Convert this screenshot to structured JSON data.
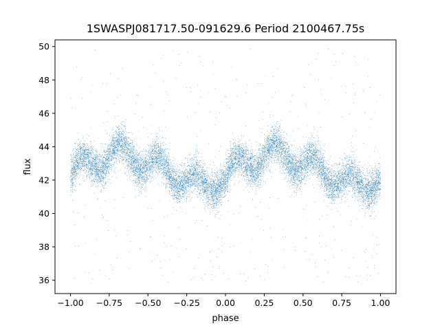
{
  "chart_data": {
    "type": "scatter",
    "title": "1SWASPJ081717.50-091629.6 Period 2100467.75s",
    "xlabel": "phase",
    "ylabel": "flux",
    "xlim": [
      -1.1,
      1.1
    ],
    "ylim": [
      35.2,
      50.4
    ],
    "x_ticks": [
      -1.0,
      -0.75,
      -0.5,
      -0.25,
      0.0,
      0.25,
      0.5,
      0.75,
      1.0
    ],
    "x_tick_labels": [
      "−1.00",
      "−0.75",
      "−0.50",
      "−0.25",
      "0.00",
      "0.25",
      "0.50",
      "0.75",
      "1.00"
    ],
    "y_ticks": [
      36,
      38,
      40,
      42,
      44,
      46,
      48,
      50
    ],
    "y_tick_labels": [
      "36",
      "38",
      "40",
      "42",
      "44",
      "46",
      "48",
      "50"
    ],
    "grid": false,
    "legend": "none",
    "series": [
      {
        "color": "#1f77b4",
        "marker_size": 0.9,
        "phase_range": [
          -1.0,
          1.0
        ],
        "trend": {
          "x": [
            -1.0,
            -0.95,
            -0.9,
            -0.85,
            -0.8,
            -0.75,
            -0.7,
            -0.65,
            -0.6,
            -0.55,
            -0.5,
            -0.45,
            -0.4,
            -0.35,
            -0.3,
            -0.25,
            -0.2,
            -0.15,
            -0.1,
            -0.05,
            0.0
          ],
          "y": [
            42.2,
            42.7,
            42.9,
            43.1,
            43.2,
            43.4,
            43.6,
            43.6,
            43.4,
            43.1,
            43.0,
            42.9,
            42.7,
            42.4,
            42.2,
            42.0,
            41.8,
            41.6,
            41.8,
            42.0,
            42.1
          ]
        },
        "approx_points_per_cycle": 6500,
        "spread": 0.55,
        "outlier_range": [
          35.8,
          49.9
        ]
      }
    ]
  }
}
